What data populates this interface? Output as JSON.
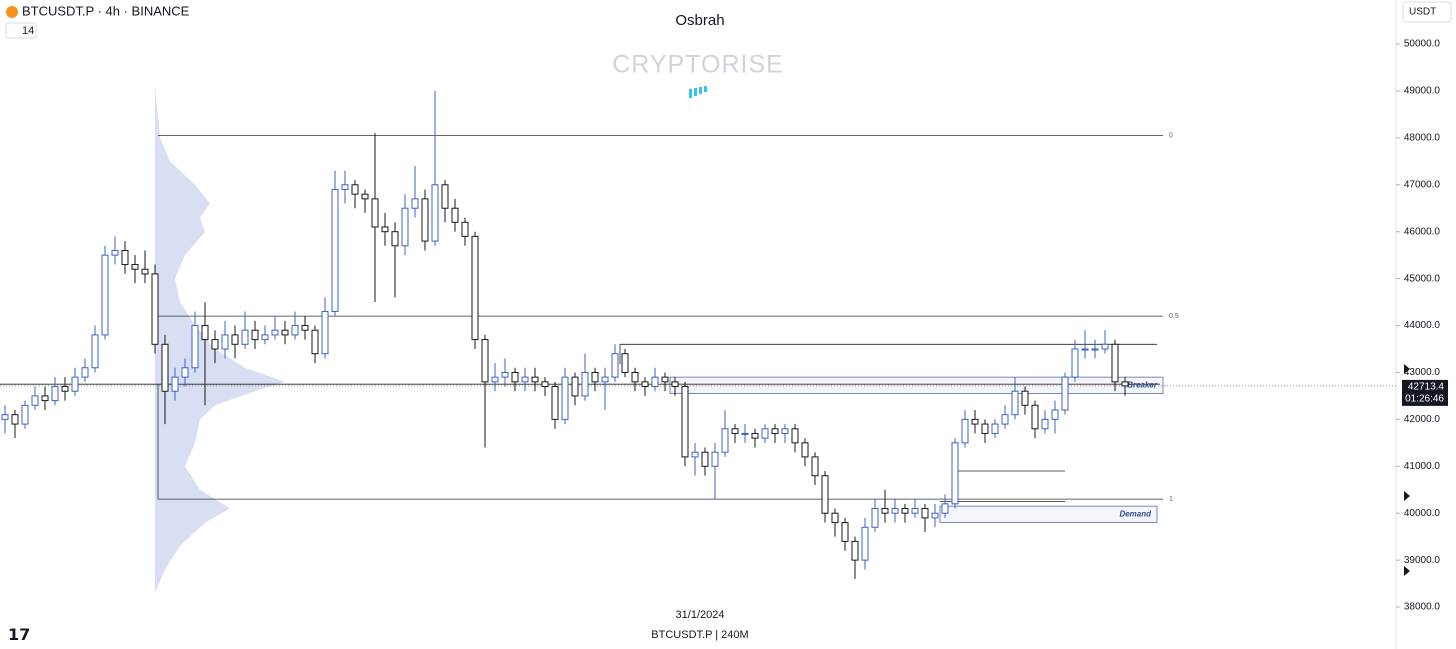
{
  "header": {
    "symbol": "BTCUSDT.P · 4h · BINANCE",
    "indicator": "14",
    "author": "Osbrah",
    "watermark": "CRYPTORISE",
    "currency": "USDT"
  },
  "footer": {
    "date": "31/1/2024",
    "legend": "BTCUSDT.P | 240M"
  },
  "chart_data": {
    "type": "candlestick",
    "ylim": [
      37106,
      50938
    ],
    "yticks": [
      {
        "value": 50000,
        "label": "50000.0"
      },
      {
        "value": 49000,
        "label": "49000.0"
      },
      {
        "value": 48000,
        "label": "48000.0"
      },
      {
        "value": 47000,
        "label": "47000.0"
      },
      {
        "value": 46000,
        "label": "46000.0"
      },
      {
        "value": 45000,
        "label": "45000.0"
      },
      {
        "value": 44000,
        "label": "44000.0"
      },
      {
        "value": 43000,
        "label": "43000.0"
      },
      {
        "value": 42000,
        "label": "42000.0"
      },
      {
        "value": 41000,
        "label": "41000.0"
      },
      {
        "value": 40000,
        "label": "40000.0"
      },
      {
        "value": 39000,
        "label": "39000.0"
      },
      {
        "value": 38000,
        "label": "38000.0"
      }
    ],
    "up_color": "#3d63c9",
    "down_color": "#1a1a1a",
    "countdown": "01:26:46",
    "fib_levels": [
      {
        "label": "0",
        "value": 48050
      },
      {
        "label": "0.5",
        "value": 44200
      },
      {
        "label": "1",
        "value": 40300
      }
    ],
    "lines": [
      43600,
      42750,
      40900,
      40250
    ],
    "zones": [
      {
        "label": "Breaker",
        "top": 42900,
        "bottom": 42550
      },
      {
        "label": "Demand",
        "top": 40150,
        "bottom": 39800
      }
    ],
    "volume_profile": [
      [
        49100,
        0
      ],
      [
        48500,
        3
      ],
      [
        48000,
        5
      ],
      [
        47500,
        15
      ],
      [
        47000,
        40
      ],
      [
        46600,
        55
      ],
      [
        46300,
        45
      ],
      [
        46000,
        50
      ],
      [
        45500,
        30
      ],
      [
        45000,
        20
      ],
      [
        44500,
        25
      ],
      [
        44000,
        40
      ],
      [
        43500,
        60
      ],
      [
        43100,
        90
      ],
      [
        42800,
        130
      ],
      [
        42600,
        100
      ],
      [
        42300,
        60
      ],
      [
        42000,
        45
      ],
      [
        41500,
        40
      ],
      [
        41000,
        30
      ],
      [
        40500,
        45
      ],
      [
        40100,
        75
      ],
      [
        39800,
        50
      ],
      [
        39300,
        25
      ],
      [
        38800,
        10
      ],
      [
        38300,
        0
      ]
    ],
    "candles": [
      [
        42000,
        42300,
        41700,
        42100
      ],
      [
        42100,
        42200,
        41600,
        41900
      ],
      [
        41900,
        42400,
        41800,
        42300
      ],
      [
        42300,
        42700,
        42200,
        42500
      ],
      [
        42500,
        42700,
        42200,
        42400
      ],
      [
        42400,
        42900,
        42300,
        42700
      ],
      [
        42700,
        42900,
        42400,
        42600
      ],
      [
        42600,
        43100,
        42500,
        42900
      ],
      [
        42900,
        43300,
        42800,
        43100
      ],
      [
        43100,
        44000,
        43000,
        43800
      ],
      [
        43800,
        45700,
        43700,
        45500
      ],
      [
        45500,
        45900,
        45300,
        45600
      ],
      [
        45600,
        45800,
        45100,
        45300
      ],
      [
        45300,
        45500,
        44900,
        45200
      ],
      [
        45200,
        45600,
        44900,
        45100
      ],
      [
        45100,
        45300,
        43400,
        43600
      ],
      [
        43600,
        43800,
        41900,
        42600
      ],
      [
        42600,
        43100,
        42400,
        42900
      ],
      [
        42900,
        43300,
        42700,
        43100
      ],
      [
        43100,
        44300,
        43000,
        44000
      ],
      [
        44000,
        44500,
        42300,
        43700
      ],
      [
        43700,
        43900,
        43200,
        43500
      ],
      [
        43500,
        44100,
        43300,
        43800
      ],
      [
        43800,
        44000,
        43300,
        43600
      ],
      [
        43600,
        44300,
        43500,
        43900
      ],
      [
        43900,
        44100,
        43500,
        43700
      ],
      [
        43700,
        44000,
        43600,
        43800
      ],
      [
        43800,
        44200,
        43700,
        43900
      ],
      [
        43900,
        44100,
        43600,
        43800
      ],
      [
        43800,
        44300,
        43700,
        44000
      ],
      [
        44000,
        44200,
        43700,
        43900
      ],
      [
        43900,
        44000,
        43200,
        43400
      ],
      [
        43400,
        44600,
        43300,
        44300
      ],
      [
        44300,
        47300,
        44200,
        46900
      ],
      [
        46900,
        47300,
        46600,
        47000
      ],
      [
        47000,
        47100,
        46500,
        46800
      ],
      [
        46800,
        46900,
        46400,
        46700
      ],
      [
        46700,
        48100,
        44500,
        46100
      ],
      [
        46100,
        46400,
        45700,
        46000
      ],
      [
        46000,
        46200,
        44600,
        45700
      ],
      [
        45700,
        46800,
        45500,
        46500
      ],
      [
        46500,
        47400,
        46300,
        46700
      ],
      [
        46700,
        46900,
        45600,
        45800
      ],
      [
        45800,
        49000,
        45700,
        47000
      ],
      [
        47000,
        47100,
        46200,
        46500
      ],
      [
        46500,
        46700,
        46000,
        46200
      ],
      [
        46200,
        46300,
        45700,
        45900
      ],
      [
        45900,
        46000,
        43500,
        43700
      ],
      [
        43700,
        43800,
        41400,
        42800
      ],
      [
        42800,
        43200,
        42600,
        42900
      ],
      [
        42900,
        43300,
        42700,
        43000
      ],
      [
        43000,
        43100,
        42600,
        42800
      ],
      [
        42800,
        43100,
        42600,
        42900
      ],
      [
        42900,
        43100,
        42600,
        42800
      ],
      [
        42800,
        42900,
        42500,
        42700
      ],
      [
        42700,
        42800,
        41800,
        42000
      ],
      [
        42000,
        43100,
        41900,
        42900
      ],
      [
        42900,
        43000,
        42300,
        42500
      ],
      [
        42500,
        43400,
        42400,
        43000
      ],
      [
        43000,
        43100,
        42600,
        42800
      ],
      [
        42800,
        43100,
        42200,
        42900
      ],
      [
        42900,
        43600,
        42800,
        43400
      ],
      [
        43400,
        43500,
        42900,
        43000
      ],
      [
        43000,
        43100,
        42600,
        42800
      ],
      [
        42800,
        42900,
        42500,
        42700
      ],
      [
        42700,
        43100,
        42600,
        42900
      ],
      [
        42900,
        43000,
        42600,
        42800
      ],
      [
        42800,
        42900,
        42500,
        42700
      ],
      [
        42700,
        42800,
        41000,
        41200
      ],
      [
        41200,
        41500,
        40800,
        41300
      ],
      [
        41300,
        41400,
        40800,
        41000
      ],
      [
        41000,
        41500,
        40300,
        41300
      ],
      [
        41300,
        42200,
        41200,
        41800
      ],
      [
        41800,
        41900,
        41500,
        41700
      ],
      [
        41700,
        41900,
        41500,
        41700
      ],
      [
        41700,
        41800,
        41400,
        41600
      ],
      [
        41600,
        41900,
        41500,
        41800
      ],
      [
        41800,
        41900,
        41500,
        41700
      ],
      [
        41700,
        41900,
        41500,
        41800
      ],
      [
        41800,
        41900,
        41300,
        41500
      ],
      [
        41500,
        41600,
        41000,
        41200
      ],
      [
        41200,
        41300,
        40600,
        40800
      ],
      [
        40800,
        40900,
        39800,
        40000
      ],
      [
        40000,
        40100,
        39500,
        39800
      ],
      [
        39800,
        39900,
        39200,
        39400
      ],
      [
        39400,
        39500,
        38600,
        39000
      ],
      [
        39000,
        39900,
        38800,
        39700
      ],
      [
        39700,
        40300,
        39600,
        40100
      ],
      [
        40100,
        40500,
        39800,
        40000
      ],
      [
        40000,
        40300,
        39800,
        40100
      ],
      [
        40100,
        40200,
        39800,
        40000
      ],
      [
        40000,
        40300,
        39900,
        40100
      ],
      [
        40100,
        40200,
        39600,
        39900
      ],
      [
        39900,
        40200,
        39700,
        40000
      ],
      [
        40000,
        40400,
        39900,
        40200
      ],
      [
        40200,
        41600,
        40100,
        41500
      ],
      [
        41500,
        42200,
        41400,
        42000
      ],
      [
        42000,
        42200,
        41700,
        41900
      ],
      [
        41900,
        42000,
        41500,
        41700
      ],
      [
        41700,
        42000,
        41600,
        41900
      ],
      [
        41900,
        42300,
        41800,
        42100
      ],
      [
        42100,
        42900,
        42000,
        42600
      ],
      [
        42600,
        42700,
        42100,
        42300
      ],
      [
        42300,
        42400,
        41600,
        41800
      ],
      [
        41800,
        42200,
        41700,
        42000
      ],
      [
        42000,
        42400,
        41700,
        42200
      ],
      [
        42200,
        43000,
        42100,
        42900
      ],
      [
        42900,
        43700,
        42800,
        43500
      ],
      [
        43500,
        43900,
        43300,
        43500
      ],
      [
        43500,
        43700,
        43300,
        43500
      ],
      [
        43500,
        43900,
        43400,
        43600
      ],
      [
        43600,
        43700,
        42600,
        42800
      ],
      [
        42800,
        42900,
        42500,
        42713.4
      ]
    ]
  }
}
